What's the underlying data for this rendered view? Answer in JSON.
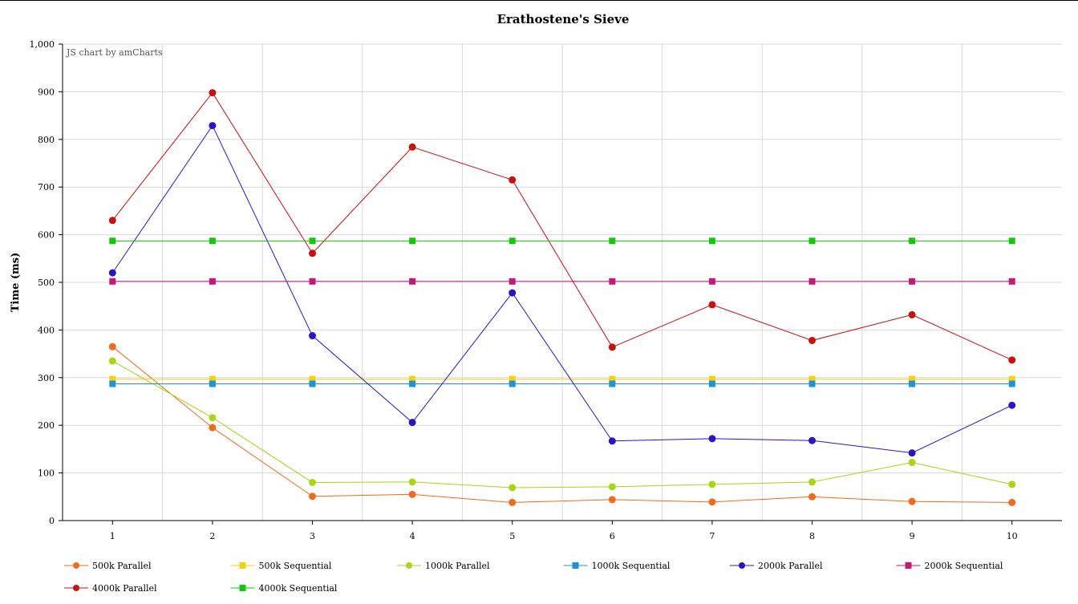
{
  "chart_data": {
    "type": "line",
    "title": "Erathostene's Sieve",
    "credit": "JS chart by amCharts",
    "xlabel": "",
    "ylabel": "Time (ms)",
    "x": [
      1,
      2,
      3,
      4,
      5,
      6,
      7,
      8,
      9,
      10
    ],
    "ylim": [
      0,
      1000
    ],
    "yticks": [
      0,
      100,
      200,
      300,
      400,
      500,
      600,
      700,
      800,
      900,
      1000
    ],
    "ytick_labels": [
      "0",
      "100",
      "200",
      "300",
      "400",
      "500",
      "600",
      "700",
      "800",
      "900",
      "1,000"
    ],
    "grid": true,
    "legend_position": "bottom",
    "series": [
      {
        "name": "500k Parallel",
        "color": "#f26b1d",
        "marker": "circle",
        "values": [
          365,
          195,
          51,
          55,
          38,
          44,
          39,
          50,
          40,
          38
        ]
      },
      {
        "name": "500k Sequential",
        "color": "#f5d20a",
        "marker": "square",
        "values": [
          297,
          297,
          297,
          297,
          297,
          297,
          297,
          297,
          297,
          297
        ]
      },
      {
        "name": "1000k Parallel",
        "color": "#a6d617",
        "marker": "circle",
        "values": [
          335,
          216,
          80,
          81,
          69,
          71,
          76,
          81,
          122,
          76
        ]
      },
      {
        "name": "1000k Sequential",
        "color": "#1e93d5",
        "marker": "square",
        "values": [
          287,
          287,
          287,
          287,
          287,
          287,
          287,
          287,
          287,
          287
        ]
      },
      {
        "name": "2000k Parallel",
        "color": "#2a14c8",
        "marker": "circle",
        "values": [
          520,
          829,
          388,
          206,
          478,
          167,
          172,
          168,
          142,
          242
        ]
      },
      {
        "name": "2000k Sequential",
        "color": "#c8177a",
        "marker": "square",
        "values": [
          502,
          502,
          502,
          502,
          502,
          502,
          502,
          502,
          502,
          502
        ]
      },
      {
        "name": "4000k Parallel",
        "color": "#c8100c",
        "marker": "circle",
        "values": [
          630,
          898,
          561,
          784,
          715,
          364,
          453,
          378,
          432,
          337
        ]
      },
      {
        "name": "4000k Sequential",
        "color": "#16c60c",
        "marker": "square",
        "values": [
          587,
          587,
          587,
          587,
          587,
          587,
          587,
          587,
          587,
          587
        ]
      }
    ]
  }
}
